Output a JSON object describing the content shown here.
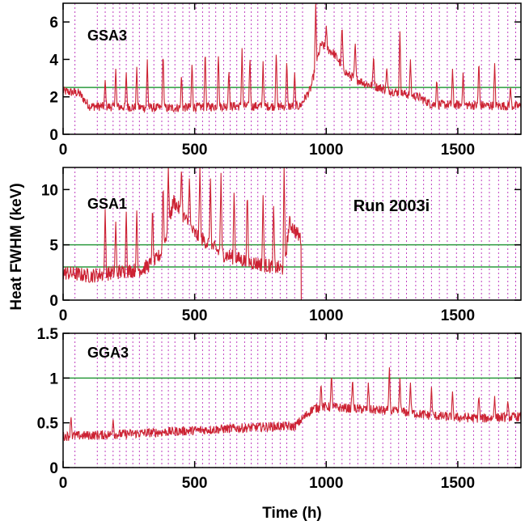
{
  "figure": {
    "ylabel": "Heat FWHM (keV)",
    "xlabel": "Time (h)",
    "annotation": "Run 2003i"
  },
  "colors": {
    "data_line": "#cc2233",
    "threshold_line": "#2b9a3e",
    "marker_line": "#c040c0",
    "frame": "#000000"
  },
  "chart_data": [
    {
      "type": "line",
      "label": "GSA3",
      "xlim": [
        0,
        1740
      ],
      "ylim": [
        0,
        7
      ],
      "xticks": [
        0,
        500,
        1000,
        1500
      ],
      "yticks": [
        0,
        2,
        4,
        6
      ],
      "threshold_lines": [
        2.5
      ],
      "series": {
        "baseline": [
          [
            0,
            2.3
          ],
          [
            60,
            2.2
          ],
          [
            100,
            1.5
          ],
          [
            400,
            1.4
          ],
          [
            600,
            1.5
          ],
          [
            900,
            1.5
          ],
          [
            940,
            2.4
          ],
          [
            980,
            4.8
          ],
          [
            1030,
            4.3
          ],
          [
            1080,
            3.2
          ],
          [
            1150,
            2.7
          ],
          [
            1250,
            2.3
          ],
          [
            1350,
            2.0
          ],
          [
            1400,
            1.6
          ],
          [
            1740,
            1.5
          ]
        ],
        "spikes": [
          [
            160,
            2.9
          ],
          [
            200,
            3.5
          ],
          [
            240,
            3.3
          ],
          [
            280,
            3.6
          ],
          [
            320,
            4.0
          ],
          [
            380,
            4.5
          ],
          [
            450,
            3.2
          ],
          [
            490,
            3.9
          ],
          [
            540,
            4.6
          ],
          [
            590,
            4.4
          ],
          [
            630,
            3.5
          ],
          [
            680,
            4.6
          ],
          [
            710,
            4.2
          ],
          [
            760,
            3.9
          ],
          [
            810,
            4.5
          ],
          [
            850,
            4.0
          ],
          [
            880,
            3.3
          ],
          [
            960,
            7.0
          ],
          [
            1000,
            5.8
          ],
          [
            1060,
            5.9
          ],
          [
            1110,
            5.0
          ],
          [
            1180,
            4.3
          ],
          [
            1230,
            3.6
          ],
          [
            1280,
            5.5
          ],
          [
            1320,
            4.0
          ],
          [
            1420,
            3.0
          ],
          [
            1480,
            3.5
          ],
          [
            1520,
            3.3
          ],
          [
            1580,
            4.0
          ],
          [
            1640,
            3.8
          ],
          [
            1700,
            2.6
          ]
        ]
      }
    },
    {
      "type": "line",
      "label": "GSA1",
      "xlim": [
        0,
        1740
      ],
      "ylim": [
        0,
        12
      ],
      "xticks": [
        0,
        500,
        1000,
        1500
      ],
      "yticks": [
        0,
        5,
        10
      ],
      "threshold_lines": [
        3,
        5
      ],
      "series": {
        "baseline": [
          [
            0,
            2.5
          ],
          [
            100,
            2.2
          ],
          [
            300,
            2.8
          ],
          [
            350,
            3.5
          ],
          [
            380,
            4.5
          ],
          [
            420,
            9.0
          ],
          [
            460,
            7.5
          ],
          [
            500,
            6.0
          ],
          [
            560,
            5.0
          ],
          [
            600,
            4.2
          ],
          [
            700,
            3.5
          ],
          [
            800,
            3.0
          ],
          [
            840,
            2.8
          ],
          [
            860,
            7.0
          ],
          [
            890,
            6.0
          ],
          [
            905,
            5.5
          ]
        ],
        "spikes": [
          [
            160,
            8.2
          ],
          [
            200,
            7.1
          ],
          [
            240,
            8.0
          ],
          [
            280,
            8.1
          ],
          [
            340,
            8.6
          ],
          [
            380,
            10.8
          ],
          [
            400,
            12.0
          ],
          [
            450,
            12.0
          ],
          [
            480,
            11.0
          ],
          [
            520,
            12.0
          ],
          [
            560,
            11.0
          ],
          [
            600,
            11.5
          ],
          [
            650,
            10.2
          ],
          [
            700,
            10.0
          ],
          [
            760,
            9.5
          ],
          [
            800,
            8.5
          ],
          [
            840,
            12.0
          ]
        ],
        "end_time": 905
      }
    },
    {
      "type": "line",
      "label": "GGA3",
      "xlim": [
        0,
        1740
      ],
      "ylim": [
        0,
        1.5
      ],
      "xticks": [
        0,
        500,
        1000,
        1500
      ],
      "yticks": [
        0,
        0.5,
        1,
        1.5
      ],
      "ytick_labels": [
        "0",
        "0.5",
        "1",
        "1.5"
      ],
      "threshold_lines": [
        1
      ],
      "series": {
        "baseline": [
          [
            0,
            0.35
          ],
          [
            200,
            0.37
          ],
          [
            400,
            0.4
          ],
          [
            600,
            0.43
          ],
          [
            800,
            0.46
          ],
          [
            880,
            0.46
          ],
          [
            950,
            0.66
          ],
          [
            1000,
            0.68
          ],
          [
            1100,
            0.66
          ],
          [
            1200,
            0.64
          ],
          [
            1300,
            0.62
          ],
          [
            1400,
            0.58
          ],
          [
            1500,
            0.56
          ],
          [
            1600,
            0.55
          ],
          [
            1740,
            0.57
          ]
        ],
        "spikes": [
          [
            30,
            0.58
          ],
          [
            190,
            0.55
          ],
          [
            980,
            0.95
          ],
          [
            1020,
            1.05
          ],
          [
            1100,
            1.0
          ],
          [
            1160,
            0.95
          ],
          [
            1240,
            1.12
          ],
          [
            1280,
            1.0
          ],
          [
            1320,
            0.95
          ],
          [
            1400,
            0.9
          ],
          [
            1480,
            0.85
          ],
          [
            1580,
            0.82
          ],
          [
            1640,
            0.8
          ],
          [
            1690,
            0.75
          ]
        ]
      }
    }
  ]
}
